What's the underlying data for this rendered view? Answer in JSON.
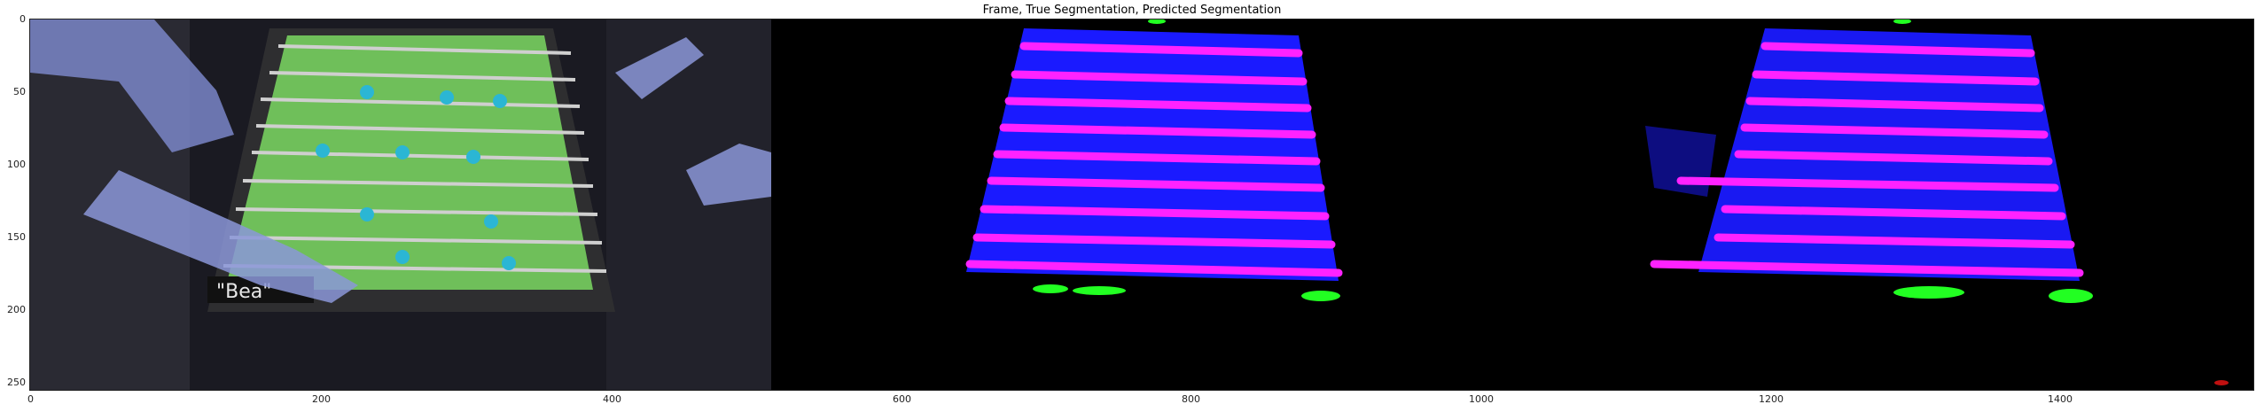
{
  "figure": {
    "title": "Frame, True Segmentation, Predicted Segmentation"
  },
  "axes": {
    "x_ticks": [
      "0",
      "200",
      "400",
      "600",
      "800",
      "1000",
      "1200",
      "1400"
    ],
    "y_ticks": [
      "0",
      "50",
      "100",
      "150",
      "200",
      "250"
    ]
  },
  "panels": [
    {
      "id": "frame",
      "kind": "photo"
    },
    {
      "id": "true-segmentation",
      "kind": "mask"
    },
    {
      "id": "predicted-segmentation",
      "kind": "mask"
    }
  ],
  "colors": {
    "table_class": "#1a1aff",
    "rod_class": "#ff22ff",
    "ball_class": "#22ff22",
    "background": "#000000"
  },
  "frame_photo_text": {
    "table_logo": "\"Bea\""
  }
}
